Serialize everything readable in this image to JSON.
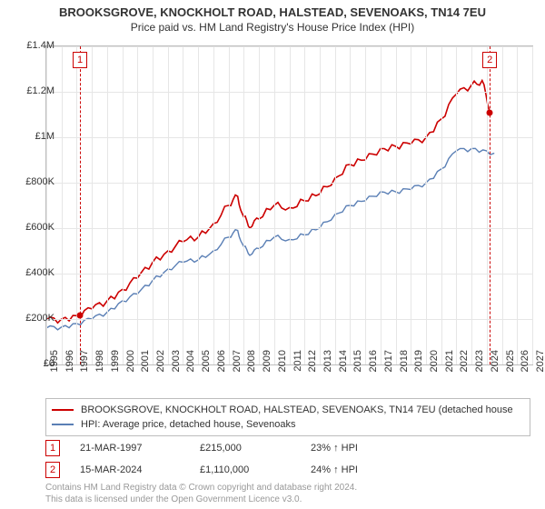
{
  "title": "BROOKSGROVE, KNOCKHOLT ROAD, HALSTEAD, SEVENOAKS, TN14 7EU",
  "subtitle": "Price paid vs. HM Land Registry's House Price Index (HPI)",
  "chart": {
    "type": "line",
    "background_color": "#ffffff",
    "grid_color": "#e6e6e6",
    "axis_color": "#bdbdbd",
    "title_fontsize": 13,
    "subtitle_fontsize": 12,
    "label_fontsize": 11,
    "xlim": [
      1995,
      2027
    ],
    "ylim": [
      0,
      1400000
    ],
    "ytick_step": 200000,
    "ytick_labels": [
      "£0",
      "£200K",
      "£400K",
      "£600K",
      "£800K",
      "£1M",
      "£1.2M",
      "£1.4M"
    ],
    "xticks": [
      1995,
      1996,
      1997,
      1998,
      1999,
      2000,
      2001,
      2002,
      2003,
      2004,
      2005,
      2006,
      2007,
      2008,
      2009,
      2010,
      2011,
      2012,
      2013,
      2014,
      2015,
      2016,
      2017,
      2018,
      2019,
      2020,
      2021,
      2022,
      2023,
      2024,
      2025,
      2026,
      2027
    ],
    "series": [
      {
        "name": "price_paid",
        "label": "BROOKSGROVE, KNOCKHOLT ROAD, HALSTEAD, SEVENOAKS, TN14 7EU (detached house",
        "color": "#cc0000",
        "line_width": 1.6,
        "x": [
          1995,
          1996,
          1997,
          1998,
          1999,
          2000,
          2001,
          2002,
          2003,
          2004,
          2005,
          2006,
          2007,
          2007.6,
          2008,
          2008.4,
          2009,
          2010,
          2011,
          2012,
          2013,
          2014,
          2015,
          2016,
          2017,
          2018,
          2019,
          2020,
          2021,
          2022,
          2023,
          2023.7,
          2024.2
        ],
        "y": [
          195000,
          200000,
          215000,
          245000,
          280000,
          330000,
          380000,
          450000,
          500000,
          540000,
          560000,
          620000,
          700000,
          740000,
          650000,
          600000,
          640000,
          700000,
          690000,
          720000,
          750000,
          820000,
          880000,
          900000,
          950000,
          960000,
          970000,
          1000000,
          1080000,
          1190000,
          1230000,
          1250000,
          1110000
        ]
      },
      {
        "name": "hpi",
        "label": "HPI: Average price, detached house, Sevenoaks",
        "color": "#5a7fb5",
        "line_width": 1.4,
        "x": [
          1995,
          1996,
          1997,
          1998,
          1999,
          2000,
          2001,
          2002,
          2003,
          2004,
          2005,
          2006,
          2007,
          2007.6,
          2008,
          2008.4,
          2009,
          2010,
          2011,
          2012,
          2013,
          2014,
          2015,
          2016,
          2017,
          2018,
          2019,
          2020,
          2021,
          2022,
          2023,
          2024,
          2024.5
        ],
        "y": [
          160000,
          165000,
          180000,
          200000,
          230000,
          280000,
          310000,
          370000,
          420000,
          450000,
          460000,
          500000,
          560000,
          590000,
          520000,
          480000,
          510000,
          560000,
          550000,
          570000,
          600000,
          660000,
          700000,
          720000,
          760000,
          760000,
          770000,
          800000,
          860000,
          940000,
          950000,
          940000,
          930000
        ]
      }
    ],
    "markers": [
      {
        "idx": "1",
        "x": 1997.22,
        "dot_y": 215000
      },
      {
        "idx": "2",
        "x": 2024.2,
        "dot_y": 1110000
      }
    ]
  },
  "legend": {
    "items": [
      {
        "color": "#cc0000",
        "label": "BROOKSGROVE, KNOCKHOLT ROAD, HALSTEAD, SEVENOAKS, TN14 7EU (detached house"
      },
      {
        "color": "#5a7fb5",
        "label": "HPI: Average price, detached house, Sevenoaks"
      }
    ]
  },
  "footer_rows": [
    {
      "idx": "1",
      "date": "21-MAR-1997",
      "price": "£215,000",
      "pct": "23% ↑ HPI"
    },
    {
      "idx": "2",
      "date": "15-MAR-2024",
      "price": "£1,110,000",
      "pct": "24% ↑ HPI"
    }
  ],
  "credit_line1": "Contains HM Land Registry data © Crown copyright and database right 2024.",
  "credit_line2": "This data is licensed under the Open Government Licence v3.0."
}
